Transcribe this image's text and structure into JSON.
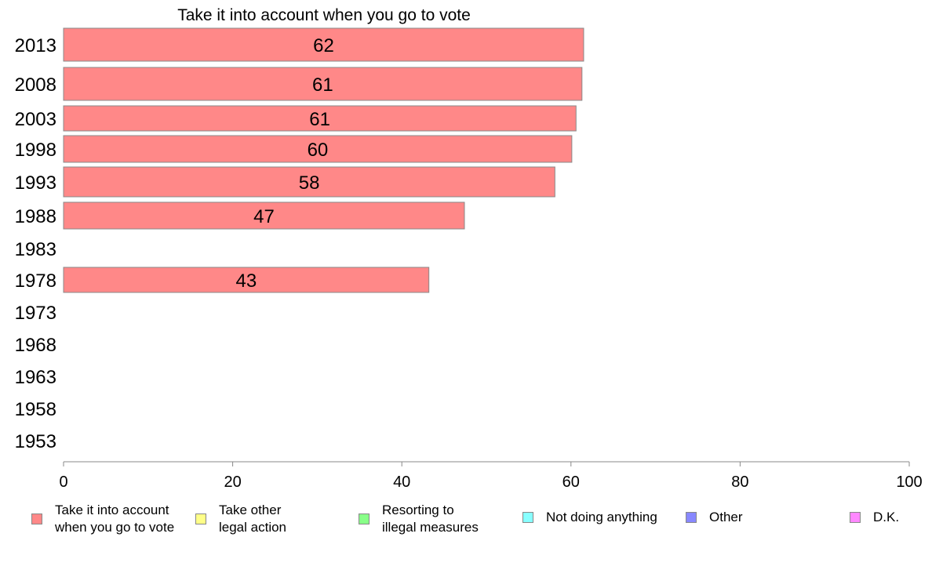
{
  "chart_data": {
    "type": "bar",
    "orientation": "horizontal",
    "title": "Take it into account when you go to vote",
    "categories": [
      "2013",
      "2008",
      "2003",
      "1998",
      "1993",
      "1988",
      "1983",
      "1978",
      "1973",
      "1968",
      "1963",
      "1958",
      "1953"
    ],
    "series": [
      {
        "name": "Take it into account when you go to vote",
        "values": [
          61.5,
          61.3,
          60.6,
          60.1,
          58.1,
          47.4,
          null,
          43.2,
          null,
          null,
          null,
          null,
          null
        ],
        "data_labels": [
          "62",
          "61",
          "61",
          "60",
          "58",
          "47",
          "",
          "43",
          "",
          "",
          "",
          "",
          ""
        ]
      }
    ],
    "xlim": [
      0,
      100
    ],
    "xticks": [
      "0",
      "20",
      "40",
      "60",
      "80",
      "100"
    ],
    "grid": false,
    "legend_placement": "bottom",
    "legend": [
      {
        "label": "Take it into account\nwhen you go to vote",
        "color": "#ff8888"
      },
      {
        "label": "Take other\nlegal action",
        "color": "#ffff88"
      },
      {
        "label": "Resorting to\nillegal measures",
        "color": "#88ff88"
      },
      {
        "label": "Not doing anything",
        "color": "#88ffff"
      },
      {
        "label": "Other",
        "color": "#8888ff"
      },
      {
        "label": "D.K.",
        "color": "#ff88ff"
      }
    ],
    "bar_color": "#ff8888",
    "bar_stroke": "#888888"
  }
}
